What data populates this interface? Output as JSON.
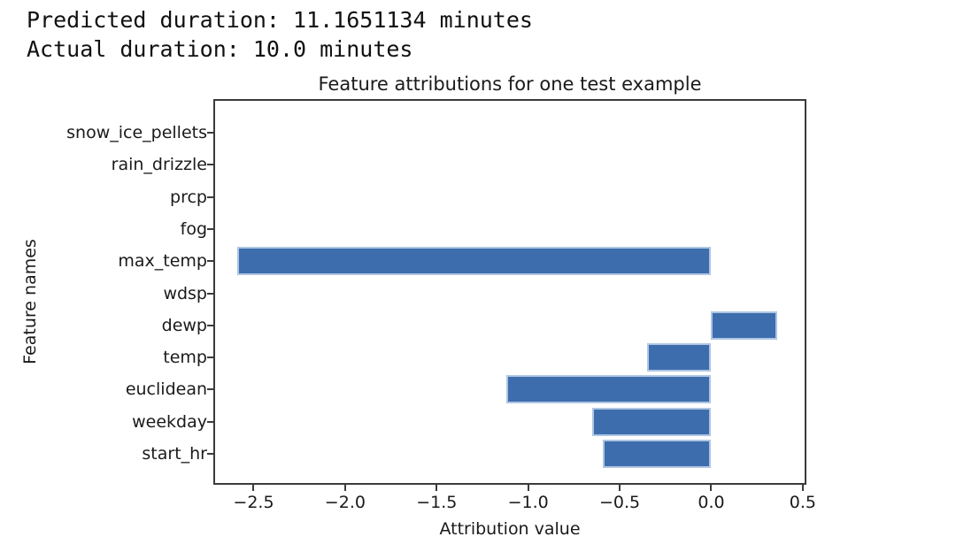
{
  "header": {
    "line1": "Predicted duration: 11.1651134 minutes",
    "line2": "Actual duration: 10.0 minutes"
  },
  "chart_data": {
    "type": "bar",
    "orientation": "horizontal",
    "title": "Feature attributions for one test example",
    "xlabel": "Attribution value",
    "ylabel": "Feature names",
    "categories": [
      "snow_ice_pellets",
      "rain_drizzle",
      "prcp",
      "fog",
      "max_temp",
      "wdsp",
      "dewp",
      "temp",
      "euclidean",
      "weekday",
      "start_hr"
    ],
    "values": [
      0,
      0,
      0,
      0,
      -2.59,
      0,
      0.36,
      -0.35,
      -1.12,
      -0.65,
      -0.59
    ],
    "xlim": [
      -2.72,
      0.52
    ],
    "xticks": [
      -2.5,
      -2.0,
      -1.5,
      -1.0,
      -0.5,
      0.0,
      0.5
    ],
    "xtick_labels": [
      "−2.5",
      "−2.0",
      "−1.5",
      "−1.0",
      "−0.5",
      "0.0",
      "0.5"
    ],
    "grid": false,
    "legend": null,
    "bar_color": "#3E6DAE",
    "bar_edge_color": "#AFC6E2",
    "axis_color": "#3b3b3b"
  }
}
